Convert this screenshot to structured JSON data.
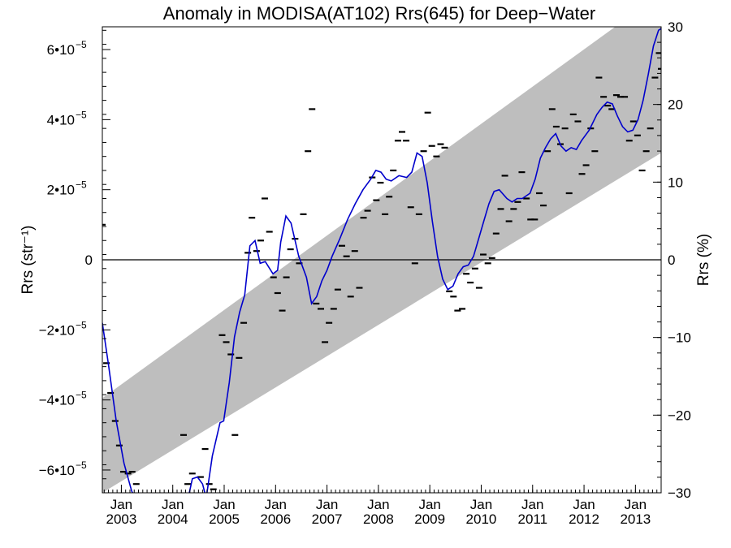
{
  "chart_data": {
    "type": "line",
    "title": "Anomaly in MODISA(AT102) Rrs(645) for Deep−Water",
    "ylabel_left": "Rrs (str⁻¹)",
    "ylabel_right": "Rrs (%)",
    "xlabel": "",
    "x_range_years": [
      2002.63,
      2013.5
    ],
    "ylim_left": [
      -6.65e-05,
      6.65e-05
    ],
    "ylim_right": [
      -30,
      30
    ],
    "x_ticks": [
      {
        "year": 2003,
        "label_month": "Jan",
        "label_year": "2003"
      },
      {
        "year": 2004,
        "label_month": "Jan",
        "label_year": "2004"
      },
      {
        "year": 2005,
        "label_month": "Jan",
        "label_year": "2005"
      },
      {
        "year": 2006,
        "label_month": "Jan",
        "label_year": "2006"
      },
      {
        "year": 2007,
        "label_month": "Jan",
        "label_year": "2007"
      },
      {
        "year": 2008,
        "label_month": "Jan",
        "label_year": "2008"
      },
      {
        "year": 2009,
        "label_month": "Jan",
        "label_year": "2009"
      },
      {
        "year": 2010,
        "label_month": "Jan",
        "label_year": "2010"
      },
      {
        "year": 2011,
        "label_month": "Jan",
        "label_year": "2011"
      },
      {
        "year": 2012,
        "label_month": "Jan",
        "label_year": "2012"
      },
      {
        "year": 2013,
        "label_month": "Jan",
        "label_year": "2013"
      }
    ],
    "y_ticks_left": [
      {
        "value": 6e-05,
        "label": "6•10",
        "exp": "−5"
      },
      {
        "value": 4e-05,
        "label": "4•10",
        "exp": "−5"
      },
      {
        "value": 2e-05,
        "label": "2•10",
        "exp": "−5"
      },
      {
        "value": 0,
        "label": "0",
        "exp": ""
      },
      {
        "value": -2e-05,
        "label": "−2•10",
        "exp": "−5"
      },
      {
        "value": -4e-05,
        "label": "−4•10",
        "exp": "−5"
      },
      {
        "value": -6e-05,
        "label": "−6•10",
        "exp": "−5"
      }
    ],
    "y_ticks_right": [
      {
        "value": 30,
        "label": "30"
      },
      {
        "value": 20,
        "label": "20"
      },
      {
        "value": 10,
        "label": "10"
      },
      {
        "value": 0,
        "label": "0"
      },
      {
        "value": -10,
        "label": "−10"
      },
      {
        "value": -20,
        "label": "−20"
      },
      {
        "value": -30,
        "label": "−30"
      }
    ],
    "trend_band": {
      "x": [
        2002.63,
        2013.5
      ],
      "upper": [
        -3.95e-05,
        7.6e-05
      ],
      "lower": [
        -6.65e-05,
        3.05e-05
      ]
    },
    "zero_line": 0,
    "colors": {
      "smoothed": "#0000cc",
      "band": "#bebebe",
      "monthly": "#000000",
      "axes": "#000000"
    },
    "series": [
      {
        "kind": "monthly_markers",
        "points": [
          [
            2002.63,
            1e-05
          ],
          [
            2002.71,
            -2.95e-05
          ],
          [
            2002.79,
            -3.8e-05
          ],
          [
            2002.88,
            -4.6e-05
          ],
          [
            2002.96,
            -5.3e-05
          ],
          [
            2003.04,
            -6.05e-05
          ],
          [
            2003.13,
            -6.1e-05
          ],
          [
            2003.21,
            -6.05e-05
          ],
          [
            2003.29,
            -6.4e-05
          ],
          [
            2004.21,
            -5e-05
          ],
          [
            2004.29,
            -6.4e-05
          ],
          [
            2004.38,
            -6.1e-05
          ],
          [
            2004.54,
            -6.2e-05
          ],
          [
            2004.63,
            -5.4e-05
          ],
          [
            2004.71,
            -6.4e-05
          ],
          [
            2004.79,
            -6.55e-05
          ],
          [
            2004.96,
            -2.15e-05
          ],
          [
            2005.04,
            -2.35e-05
          ],
          [
            2005.13,
            -2.7e-05
          ],
          [
            2005.21,
            -5e-05
          ],
          [
            2005.29,
            -2.8e-05
          ],
          [
            2005.38,
            -1.8e-05
          ],
          [
            2005.46,
            2e-06
          ],
          [
            2005.54,
            1.2e-05
          ],
          [
            2005.63,
            2.5e-06
          ],
          [
            2005.71,
            5.5e-06
          ],
          [
            2005.79,
            1.75e-05
          ],
          [
            2005.88,
            8e-06
          ],
          [
            2005.96,
            -5e-06
          ],
          [
            2006.04,
            -9.5e-06
          ],
          [
            2006.13,
            -1.45e-05
          ],
          [
            2006.21,
            -5e-06
          ],
          [
            2006.29,
            3e-06
          ],
          [
            2006.38,
            6e-06
          ],
          [
            2006.46,
            -1e-06
          ],
          [
            2006.54,
            1.3e-05
          ],
          [
            2006.63,
            3.1e-05
          ],
          [
            2006.71,
            4.3e-05
          ],
          [
            2006.79,
            -1.25e-05
          ],
          [
            2006.88,
            -1.4e-05
          ],
          [
            2006.96,
            -2.35e-05
          ],
          [
            2007.04,
            -1.8e-05
          ],
          [
            2007.13,
            -1.4e-05
          ],
          [
            2007.21,
            -8.5e-06
          ],
          [
            2007.29,
            4e-06
          ],
          [
            2007.38,
            1e-06
          ],
          [
            2007.46,
            -1.05e-05
          ],
          [
            2007.54,
            2.5e-06
          ],
          [
            2007.63,
            -8e-06
          ],
          [
            2007.71,
            1.2e-05
          ],
          [
            2007.79,
            1.4e-05
          ],
          [
            2007.88,
            2.35e-05
          ],
          [
            2007.96,
            1.7e-05
          ],
          [
            2008.04,
            2.2e-05
          ],
          [
            2008.13,
            1.3e-05
          ],
          [
            2008.21,
            1.8e-05
          ],
          [
            2008.29,
            2.55e-05
          ],
          [
            2008.38,
            3.4e-05
          ],
          [
            2008.46,
            3.65e-05
          ],
          [
            2008.54,
            3.4e-05
          ],
          [
            2008.63,
            1.5e-05
          ],
          [
            2008.71,
            -1e-06
          ],
          [
            2008.79,
            1.3e-05
          ],
          [
            2008.88,
            3.1e-05
          ],
          [
            2008.96,
            4.2e-05
          ],
          [
            2009.04,
            3.25e-05
          ],
          [
            2009.13,
            2.95e-05
          ],
          [
            2009.21,
            3.3e-05
          ],
          [
            2009.29,
            3.2e-05
          ],
          [
            2009.38,
            -9e-06
          ],
          [
            2009.46,
            -1.05e-05
          ],
          [
            2009.54,
            -1.45e-05
          ],
          [
            2009.63,
            -1.4e-05
          ],
          [
            2009.71,
            -4e-06
          ],
          [
            2009.79,
            -6.5e-06
          ],
          [
            2009.88,
            -2.5e-06
          ],
          [
            2009.96,
            -8e-06
          ],
          [
            2010.04,
            1.5e-06
          ],
          [
            2010.13,
            -1e-06
          ],
          [
            2010.21,
            5e-07
          ],
          [
            2010.29,
            7.5e-06
          ],
          [
            2010.38,
            1.45e-05
          ],
          [
            2010.46,
            2.4e-05
          ],
          [
            2010.54,
            1.1e-05
          ],
          [
            2010.63,
            1.45e-05
          ],
          [
            2010.71,
            1.65e-05
          ],
          [
            2010.79,
            2.5e-05
          ],
          [
            2010.88,
            1.75e-05
          ],
          [
            2010.96,
            1.15e-05
          ],
          [
            2011.04,
            1.15e-05
          ],
          [
            2011.13,
            1.9e-05
          ],
          [
            2011.21,
            1.55e-05
          ],
          [
            2011.29,
            3.1e-05
          ],
          [
            2011.38,
            4.3e-05
          ],
          [
            2011.46,
            3.8e-05
          ],
          [
            2011.54,
            3.3e-05
          ],
          [
            2011.63,
            3.75e-05
          ],
          [
            2011.71,
            1.9e-05
          ],
          [
            2011.79,
            4.15e-05
          ],
          [
            2011.88,
            3.95e-05
          ],
          [
            2011.96,
            2.45e-05
          ],
          [
            2012.04,
            2.7e-05
          ],
          [
            2012.13,
            3.75e-05
          ],
          [
            2012.21,
            3.1e-05
          ],
          [
            2012.29,
            5.2e-05
          ],
          [
            2012.38,
            4.65e-05
          ],
          [
            2012.46,
            4.4e-05
          ],
          [
            2012.54,
            4.3e-05
          ],
          [
            2012.63,
            4.7e-05
          ],
          [
            2012.71,
            4.65e-05
          ],
          [
            2012.79,
            4.65e-05
          ],
          [
            2012.88,
            3.4e-05
          ],
          [
            2012.96,
            3.95e-05
          ],
          [
            2013.04,
            3.55e-05
          ],
          [
            2013.13,
            2.55e-05
          ],
          [
            2013.21,
            3.1e-05
          ],
          [
            2013.29,
            3.75e-05
          ],
          [
            2013.38,
            5.2e-05
          ],
          [
            2013.46,
            5.9e-05
          ],
          [
            2013.5,
            5.45e-05
          ]
        ]
      },
      {
        "kind": "smoothed_line",
        "points": [
          [
            2002.63,
            -1.8e-05
          ],
          [
            2002.75,
            -3e-05
          ],
          [
            2002.9,
            -4.6e-05
          ],
          [
            2003.05,
            -5.8e-05
          ],
          [
            2003.2,
            -6.6e-05
          ],
          [
            2003.27,
            -6.8e-05
          ],
          [
            2004.3,
            -6.8e-05
          ],
          [
            2004.38,
            -6.25e-05
          ],
          [
            2004.48,
            -6.2e-05
          ],
          [
            2004.58,
            -6.4e-05
          ],
          [
            2004.65,
            -6.8e-05
          ],
          [
            2004.77,
            -5.6e-05
          ],
          [
            2004.92,
            -4.65e-05
          ],
          [
            2004.99,
            -4.6e-05
          ],
          [
            2005.1,
            -3.5e-05
          ],
          [
            2005.2,
            -2.2e-05
          ],
          [
            2005.3,
            -1.5e-05
          ],
          [
            2005.4,
            -1e-05
          ],
          [
            2005.5,
            4e-06
          ],
          [
            2005.6,
            5.5e-06
          ],
          [
            2005.7,
            -1e-06
          ],
          [
            2005.8,
            -5e-07
          ],
          [
            2005.95,
            -4e-06
          ],
          [
            2006.04,
            -3e-06
          ],
          [
            2006.1,
            5e-06
          ],
          [
            2006.2,
            1.25e-05
          ],
          [
            2006.3,
            1.05e-05
          ],
          [
            2006.45,
            1e-06
          ],
          [
            2006.6,
            -5e-06
          ],
          [
            2006.7,
            -1.25e-05
          ],
          [
            2006.8,
            -1.05e-05
          ],
          [
            2006.9,
            -6e-06
          ],
          [
            2007.0,
            -3e-06
          ],
          [
            2007.1,
            1e-06
          ],
          [
            2007.25,
            6e-06
          ],
          [
            2007.4,
            1.15e-05
          ],
          [
            2007.55,
            1.6e-05
          ],
          [
            2007.7,
            2e-05
          ],
          [
            2007.85,
            2.3e-05
          ],
          [
            2007.95,
            2.55e-05
          ],
          [
            2008.05,
            2.5e-05
          ],
          [
            2008.15,
            2.3e-05
          ],
          [
            2008.25,
            2.25e-05
          ],
          [
            2008.4,
            2.4e-05
          ],
          [
            2008.55,
            2.35e-05
          ],
          [
            2008.65,
            2.5e-05
          ],
          [
            2008.75,
            3.05e-05
          ],
          [
            2008.85,
            2.95e-05
          ],
          [
            2008.95,
            2.2e-05
          ],
          [
            2009.05,
            1.1e-05
          ],
          [
            2009.15,
            1e-06
          ],
          [
            2009.25,
            -5.5e-06
          ],
          [
            2009.35,
            -8.5e-06
          ],
          [
            2009.45,
            -7.5e-06
          ],
          [
            2009.55,
            -4e-06
          ],
          [
            2009.65,
            -2e-06
          ],
          [
            2009.75,
            -1.5e-06
          ],
          [
            2009.85,
            1e-06
          ],
          [
            2009.95,
            6e-06
          ],
          [
            2010.05,
            1.1e-05
          ],
          [
            2010.15,
            1.6e-05
          ],
          [
            2010.25,
            1.95e-05
          ],
          [
            2010.35,
            2e-05
          ],
          [
            2010.5,
            1.75e-05
          ],
          [
            2010.6,
            1.65e-05
          ],
          [
            2010.7,
            1.75e-05
          ],
          [
            2010.8,
            1.75e-05
          ],
          [
            2010.95,
            1.9e-05
          ],
          [
            2011.05,
            2.3e-05
          ],
          [
            2011.15,
            2.9e-05
          ],
          [
            2011.25,
            3.2e-05
          ],
          [
            2011.35,
            3.45e-05
          ],
          [
            2011.45,
            3.6e-05
          ],
          [
            2011.55,
            3.25e-05
          ],
          [
            2011.65,
            3.1e-05
          ],
          [
            2011.75,
            3.2e-05
          ],
          [
            2011.85,
            3.15e-05
          ],
          [
            2011.95,
            3.4e-05
          ],
          [
            2012.1,
            3.7e-05
          ],
          [
            2012.25,
            4.15e-05
          ],
          [
            2012.35,
            4.35e-05
          ],
          [
            2012.45,
            4.5e-05
          ],
          [
            2012.55,
            4.45e-05
          ],
          [
            2012.65,
            4.1e-05
          ],
          [
            2012.75,
            3.8e-05
          ],
          [
            2012.85,
            3.65e-05
          ],
          [
            2012.95,
            3.7e-05
          ],
          [
            2013.05,
            4e-05
          ],
          [
            2013.15,
            4.55e-05
          ],
          [
            2013.25,
            5.3e-05
          ],
          [
            2013.35,
            6.1e-05
          ],
          [
            2013.45,
            6.55e-05
          ],
          [
            2013.5,
            6.6e-05
          ]
        ]
      }
    ]
  }
}
